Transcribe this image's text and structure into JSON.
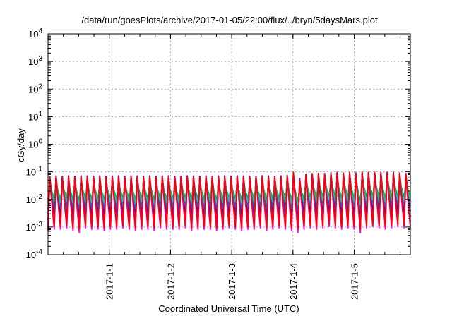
{
  "chart_data": {
    "type": "line",
    "title": "/data/run/goesPlots/archive/2017-01-05/22:00/flux/../bryn/5daysMars.plot",
    "xlabel": "Coordinated Universal Time (UTC)",
    "ylabel": "cGy/day",
    "y_scale": "log",
    "ylim": [
      0.0001,
      10000
    ],
    "xlim": [
      "2016-12-31 00:00",
      "2017-01-05 22:00"
    ],
    "grid": true,
    "y_ticks": [
      {
        "value": 0.0001,
        "base": "10",
        "exp": "-4"
      },
      {
        "value": 0.001,
        "base": "10",
        "exp": "-3"
      },
      {
        "value": 0.01,
        "base": "10",
        "exp": "-2"
      },
      {
        "value": 0.1,
        "base": "10",
        "exp": "-1"
      },
      {
        "value": 1,
        "base": "10",
        "exp": "0"
      },
      {
        "value": 10,
        "base": "10",
        "exp": "1"
      },
      {
        "value": 100,
        "base": "10",
        "exp": "2"
      },
      {
        "value": 1000,
        "base": "10",
        "exp": "3"
      },
      {
        "value": 10000,
        "base": "10",
        "exp": "4"
      }
    ],
    "x_ticks": [
      {
        "label": "2017-1-1",
        "value": "2017-01-01"
      },
      {
        "label": "2017-1-2",
        "value": "2017-01-02"
      },
      {
        "label": "2017-1-3",
        "value": "2017-01-03"
      },
      {
        "label": "2017-1-4",
        "value": "2017-01-04"
      },
      {
        "label": "2017-1-5",
        "value": "2017-01-05"
      }
    ],
    "series": [
      {
        "color": "#ff00ff",
        "baseline": [
          0.0007,
          0.0008,
          0.0008,
          0.0009,
          0.0007,
          0.0006,
          0.0009,
          0.0008,
          0.0008,
          0.0007,
          0.0008,
          0.0008,
          0.0009,
          0.0008,
          0.0007,
          0.0008,
          0.0008,
          0.0007,
          0.0009,
          0.0008,
          0.0008,
          0.0008,
          0.0009,
          0.0007,
          0.0008,
          0.0008,
          0.0008,
          0.0007,
          0.0008,
          0.0009,
          0.0008,
          0.0007,
          0.0008,
          0.0008,
          0.0009,
          0.0007,
          0.0008,
          0.0009,
          0.0008,
          0.0007,
          0.0006,
          0.0008,
          0.0009,
          0.0008,
          0.0009,
          0.001,
          0.0009,
          0.0008,
          0.0009,
          0.0008,
          0.0006,
          0.0009,
          0.001,
          0.0009,
          0.0008,
          0.0009,
          0.001,
          0.0009
        ],
        "peak": [
          0.045,
          0.05,
          0.048,
          0.05,
          0.047,
          0.05,
          0.049,
          0.048,
          0.05,
          0.047,
          0.049,
          0.05,
          0.048,
          0.05,
          0.049,
          0.047,
          0.05,
          0.048,
          0.049,
          0.05,
          0.048,
          0.047,
          0.05,
          0.049,
          0.048,
          0.05,
          0.047,
          0.049,
          0.05,
          0.048,
          0.05,
          0.049,
          0.048,
          0.047,
          0.05,
          0.049,
          0.048,
          0.05,
          0.052,
          0.055,
          0.04,
          0.06,
          0.06,
          0.065,
          0.06,
          0.065,
          0.07,
          0.065,
          0.07,
          0.065,
          0.075,
          0.07,
          0.075,
          0.07,
          0.072,
          0.07,
          0.065,
          0.06
        ]
      },
      {
        "color": "#cc0099",
        "baseline": [
          0.0012,
          0.0013,
          0.0012,
          0.0014,
          0.0012,
          0.0011,
          0.0013,
          0.0012,
          0.0013,
          0.0012,
          0.0013,
          0.0012,
          0.0014,
          0.0012,
          0.0012,
          0.0013,
          0.0012,
          0.0012,
          0.0013,
          0.0012,
          0.0013,
          0.0012,
          0.0014,
          0.0012,
          0.0013,
          0.0012,
          0.0013,
          0.0012,
          0.0012,
          0.0014,
          0.0013,
          0.0012,
          0.0013,
          0.0012,
          0.0014,
          0.0012,
          0.0013,
          0.0014,
          0.0013,
          0.0012,
          0.001,
          0.0013,
          0.0015,
          0.0014,
          0.0015,
          0.0016,
          0.0015,
          0.0013,
          0.0015,
          0.0013,
          0.001,
          0.0015,
          0.0016,
          0.0015,
          0.0013,
          0.0015,
          0.0016,
          0.0015
        ],
        "peak": [
          0.06,
          0.065,
          0.062,
          0.065,
          0.063,
          0.065,
          0.064,
          0.063,
          0.065,
          0.062,
          0.064,
          0.065,
          0.063,
          0.065,
          0.064,
          0.062,
          0.065,
          0.063,
          0.064,
          0.065,
          0.063,
          0.062,
          0.065,
          0.064,
          0.063,
          0.065,
          0.062,
          0.064,
          0.065,
          0.063,
          0.065,
          0.064,
          0.063,
          0.062,
          0.065,
          0.064,
          0.063,
          0.065,
          0.068,
          0.07,
          0.05,
          0.075,
          0.08,
          0.082,
          0.08,
          0.085,
          0.09,
          0.085,
          0.09,
          0.085,
          0.095,
          0.09,
          0.095,
          0.09,
          0.092,
          0.09,
          0.085,
          0.08
        ]
      },
      {
        "color": "#8800ff",
        "baseline": [
          0.0018,
          0.002,
          0.0019,
          0.0021,
          0.0019,
          0.0017,
          0.002,
          0.0019,
          0.002,
          0.0018,
          0.002,
          0.0019,
          0.0021,
          0.0019,
          0.0018,
          0.002,
          0.0019,
          0.0018,
          0.002,
          0.0019,
          0.002,
          0.0019,
          0.0021,
          0.0018,
          0.002,
          0.0019,
          0.002,
          0.0018,
          0.0019,
          0.0021,
          0.002,
          0.0018,
          0.002,
          0.0019,
          0.0021,
          0.0018,
          0.002,
          0.0021,
          0.002,
          0.0018,
          0.0015,
          0.002,
          0.0023,
          0.0021,
          0.0023,
          0.0025,
          0.0023,
          0.002,
          0.0023,
          0.002,
          0.0016,
          0.0023,
          0.0025,
          0.0023,
          0.002,
          0.0023,
          0.0025,
          0.0023
        ],
        "peak": [
          0.07,
          0.075,
          0.072,
          0.075,
          0.073,
          0.075,
          0.074,
          0.073,
          0.075,
          0.072,
          0.074,
          0.075,
          0.073,
          0.075,
          0.074,
          0.072,
          0.075,
          0.073,
          0.074,
          0.075,
          0.073,
          0.072,
          0.075,
          0.074,
          0.073,
          0.075,
          0.072,
          0.074,
          0.075,
          0.073,
          0.075,
          0.074,
          0.073,
          0.072,
          0.075,
          0.074,
          0.073,
          0.075,
          0.078,
          0.08,
          0.06,
          0.085,
          0.09,
          0.092,
          0.09,
          0.095,
          0.1,
          0.095,
          0.1,
          0.095,
          0.1,
          0.1,
          0.1,
          0.1,
          0.1,
          0.1,
          0.095,
          0.09
        ]
      },
      {
        "color": "#3300cc",
        "baseline": [
          0.003,
          0.0033,
          0.0031,
          0.0034,
          0.0031,
          0.0028,
          0.0033,
          0.0031,
          0.0033,
          0.003,
          0.0033,
          0.0031,
          0.0034,
          0.0031,
          0.003,
          0.0033,
          0.0031,
          0.003,
          0.0033,
          0.0031,
          0.0033,
          0.0031,
          0.0034,
          0.003,
          0.0033,
          0.0031,
          0.0033,
          0.003,
          0.0031,
          0.0034,
          0.0033,
          0.003,
          0.0033,
          0.0031,
          0.0034,
          0.003,
          0.0033,
          0.0034,
          0.0033,
          0.003,
          0.0025,
          0.0033,
          0.0037,
          0.0034,
          0.0037,
          0.004,
          0.0037,
          0.0033,
          0.0037,
          0.0033,
          0.0027,
          0.0037,
          0.004,
          0.0037,
          0.0033,
          0.0037,
          0.004,
          0.0037
        ],
        "peak": [
          0.055,
          0.06,
          0.058,
          0.06,
          0.057,
          0.06,
          0.059,
          0.058,
          0.06,
          0.057,
          0.059,
          0.06,
          0.058,
          0.06,
          0.059,
          0.057,
          0.06,
          0.058,
          0.059,
          0.06,
          0.058,
          0.057,
          0.06,
          0.059,
          0.058,
          0.06,
          0.057,
          0.059,
          0.06,
          0.058,
          0.06,
          0.059,
          0.058,
          0.057,
          0.06,
          0.059,
          0.058,
          0.06,
          0.062,
          0.065,
          0.048,
          0.07,
          0.072,
          0.075,
          0.072,
          0.078,
          0.082,
          0.078,
          0.082,
          0.078,
          0.085,
          0.082,
          0.085,
          0.082,
          0.084,
          0.082,
          0.078,
          0.072
        ]
      },
      {
        "color": "#0066ff",
        "baseline": [
          0.0045,
          0.005,
          0.0047,
          0.0052,
          0.0047,
          0.0042,
          0.005,
          0.0047,
          0.005,
          0.0045,
          0.005,
          0.0047,
          0.0052,
          0.0047,
          0.0045,
          0.005,
          0.0047,
          0.0045,
          0.005,
          0.0047,
          0.005,
          0.0047,
          0.0052,
          0.0045,
          0.005,
          0.0047,
          0.005,
          0.0045,
          0.0047,
          0.0052,
          0.005,
          0.0045,
          0.005,
          0.0047,
          0.0052,
          0.0045,
          0.005,
          0.0052,
          0.005,
          0.0045,
          0.0038,
          0.005,
          0.0056,
          0.0052,
          0.0056,
          0.006,
          0.0056,
          0.005,
          0.0056,
          0.005,
          0.0041,
          0.0056,
          0.006,
          0.0056,
          0.005,
          0.0056,
          0.006,
          0.0056
        ],
        "peak": [
          0.05,
          0.055,
          0.052,
          0.055,
          0.052,
          0.055,
          0.054,
          0.052,
          0.055,
          0.052,
          0.054,
          0.055,
          0.052,
          0.055,
          0.054,
          0.052,
          0.055,
          0.052,
          0.054,
          0.055,
          0.052,
          0.052,
          0.055,
          0.054,
          0.052,
          0.055,
          0.052,
          0.054,
          0.055,
          0.052,
          0.055,
          0.054,
          0.052,
          0.052,
          0.055,
          0.054,
          0.052,
          0.055,
          0.057,
          0.06,
          0.045,
          0.065,
          0.066,
          0.07,
          0.066,
          0.072,
          0.075,
          0.072,
          0.075,
          0.072,
          0.078,
          0.075,
          0.078,
          0.075,
          0.077,
          0.075,
          0.072,
          0.066
        ]
      },
      {
        "color": "#00cccc",
        "baseline": [
          0.007,
          0.0078,
          0.0073,
          0.0081,
          0.0073,
          0.0066,
          0.0078,
          0.0073,
          0.0078,
          0.007,
          0.0078,
          0.0073,
          0.0081,
          0.0073,
          0.007,
          0.0078,
          0.0073,
          0.007,
          0.0078,
          0.0073,
          0.0078,
          0.0073,
          0.0081,
          0.007,
          0.0078,
          0.0073,
          0.0078,
          0.007,
          0.0073,
          0.0081,
          0.0078,
          0.007,
          0.0078,
          0.0073,
          0.0081,
          0.007,
          0.0078,
          0.0081,
          0.0078,
          0.007,
          0.006,
          0.0078,
          0.0087,
          0.0081,
          0.0087,
          0.0093,
          0.0087,
          0.0078,
          0.0087,
          0.0078,
          0.0064,
          0.0087,
          0.0093,
          0.0087,
          0.0078,
          0.0087,
          0.0093,
          0.0087
        ],
        "peak": [
          0.04,
          0.044,
          0.042,
          0.044,
          0.042,
          0.044,
          0.043,
          0.042,
          0.044,
          0.042,
          0.043,
          0.044,
          0.042,
          0.044,
          0.043,
          0.042,
          0.044,
          0.042,
          0.043,
          0.044,
          0.042,
          0.042,
          0.044,
          0.043,
          0.042,
          0.044,
          0.042,
          0.043,
          0.044,
          0.042,
          0.044,
          0.043,
          0.042,
          0.042,
          0.044,
          0.043,
          0.042,
          0.044,
          0.046,
          0.048,
          0.036,
          0.052,
          0.053,
          0.056,
          0.053,
          0.058,
          0.06,
          0.058,
          0.06,
          0.058,
          0.062,
          0.06,
          0.062,
          0.06,
          0.061,
          0.06,
          0.058,
          0.053
        ]
      },
      {
        "color": "#00bb66",
        "baseline": [
          0.01,
          0.011,
          0.0104,
          0.0115,
          0.0104,
          0.0094,
          0.011,
          0.0104,
          0.011,
          0.01,
          0.011,
          0.0104,
          0.0115,
          0.0104,
          0.01,
          0.011,
          0.0104,
          0.01,
          0.011,
          0.0104,
          0.011,
          0.0104,
          0.0115,
          0.01,
          0.011,
          0.0104,
          0.011,
          0.01,
          0.0104,
          0.0115,
          0.011,
          0.01,
          0.011,
          0.0104,
          0.0115,
          0.01,
          0.011,
          0.0115,
          0.011,
          0.01,
          0.0085,
          0.011,
          0.0124,
          0.0115,
          0.0124,
          0.0132,
          0.0124,
          0.011,
          0.0124,
          0.011,
          0.0091,
          0.0124,
          0.0132,
          0.0124,
          0.011,
          0.0124,
          0.0132,
          0.0124
        ],
        "peak": [
          0.032,
          0.035,
          0.034,
          0.035,
          0.034,
          0.035,
          0.035,
          0.034,
          0.035,
          0.034,
          0.035,
          0.035,
          0.034,
          0.035,
          0.035,
          0.034,
          0.035,
          0.034,
          0.035,
          0.035,
          0.034,
          0.034,
          0.035,
          0.035,
          0.034,
          0.035,
          0.034,
          0.035,
          0.035,
          0.034,
          0.035,
          0.035,
          0.034,
          0.034,
          0.035,
          0.035,
          0.034,
          0.035,
          0.037,
          0.038,
          0.029,
          0.042,
          0.042,
          0.045,
          0.042,
          0.046,
          0.048,
          0.046,
          0.048,
          0.046,
          0.05,
          0.048,
          0.05,
          0.048,
          0.049,
          0.048,
          0.046,
          0.042
        ]
      },
      {
        "color": "#ff0000",
        "baseline": [
          0.0009,
          0.001,
          0.001,
          0.0011,
          0.0009,
          0.0008,
          0.0011,
          0.001,
          0.001,
          0.0009,
          0.001,
          0.001,
          0.0011,
          0.001,
          0.0009,
          0.001,
          0.001,
          0.0009,
          0.0011,
          0.001,
          0.001,
          0.001,
          0.0011,
          0.0009,
          0.001,
          0.001,
          0.001,
          0.0009,
          0.001,
          0.0011,
          0.001,
          0.0009,
          0.001,
          0.001,
          0.0011,
          0.0009,
          0.001,
          0.0011,
          0.001,
          0.0009,
          0.0008,
          0.001,
          0.0011,
          0.001,
          0.0011,
          0.0012,
          0.0011,
          0.001,
          0.0011,
          0.001,
          0.0008,
          0.0011,
          0.0012,
          0.0011,
          0.001,
          0.0011,
          0.0012,
          0.0011
        ],
        "peak": [
          0.065,
          0.07,
          0.067,
          0.07,
          0.068,
          0.07,
          0.069,
          0.068,
          0.07,
          0.067,
          0.069,
          0.07,
          0.068,
          0.07,
          0.069,
          0.067,
          0.07,
          0.068,
          0.069,
          0.07,
          0.068,
          0.067,
          0.07,
          0.069,
          0.068,
          0.07,
          0.067,
          0.069,
          0.07,
          0.068,
          0.07,
          0.069,
          0.068,
          0.067,
          0.07,
          0.069,
          0.068,
          0.07,
          0.073,
          0.1,
          0.055,
          0.08,
          0.085,
          0.088,
          0.085,
          0.09,
          0.095,
          0.09,
          0.095,
          0.09,
          0.1,
          0.095,
          0.1,
          0.095,
          0.1,
          0.095,
          0.09,
          0.085
        ]
      }
    ]
  }
}
